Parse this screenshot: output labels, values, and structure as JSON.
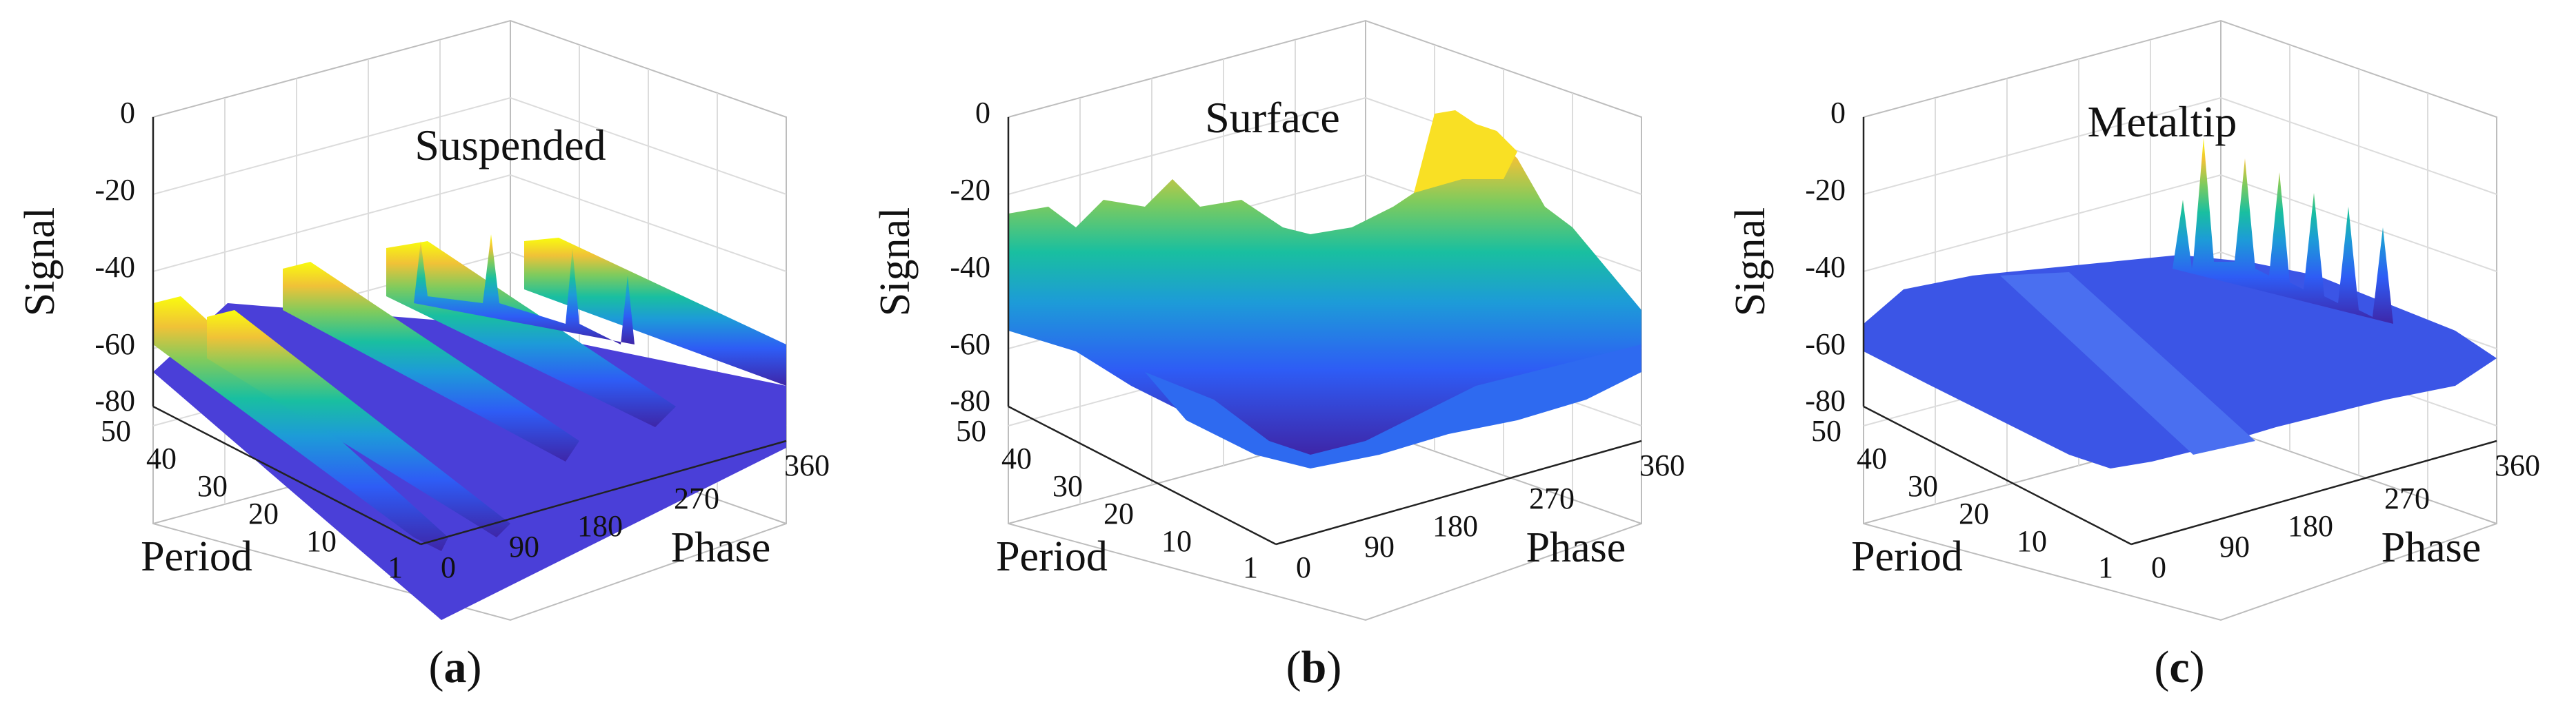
{
  "figure": {
    "panels": [
      {
        "label_open": "(",
        "label_letter": "a",
        "label_close": ")",
        "title": "Suspended"
      },
      {
        "label_open": "(",
        "label_letter": "b",
        "label_close": ")",
        "title": "Surface"
      },
      {
        "label_open": "(",
        "label_letter": "c",
        "label_close": ")",
        "title": "Metaltip"
      }
    ]
  },
  "chart_data": [
    {
      "type": "surface3d",
      "title": "Suspended",
      "xlabel": "Phase",
      "ylabel": "Period",
      "zlabel": "Signal",
      "xticks": [
        "0",
        "90",
        "180",
        "270",
        "360"
      ],
      "yticks": [
        "1",
        "10",
        "20",
        "30",
        "40",
        "50"
      ],
      "zticks": [
        "0",
        "-20",
        "-40",
        "-60",
        "-80"
      ],
      "xlim": [
        0,
        360
      ],
      "ylim": [
        1,
        50
      ],
      "zlim": [
        -80,
        0
      ],
      "colormap": [
        "#3e26a8",
        "#2e5cf5",
        "#1d9bd8",
        "#19bfa0",
        "#7fcb5d",
        "#f0c237",
        "#f9fb0e"
      ],
      "grid": true,
      "description_of_surface": "Parallel ridges along phase at about -55 to -60 dB over a -80 dB floor",
      "ridges": [
        {
          "period": 48,
          "phase_start": 0,
          "phase_end": 180,
          "level": -56
        },
        {
          "period": 42,
          "phase_start": 0,
          "phase_end": 180,
          "level": -58
        },
        {
          "period": 38,
          "phase_start": 90,
          "phase_end": 360,
          "level": -55
        },
        {
          "period": 30,
          "phase_start": 90,
          "phase_end": 360,
          "level": -57
        },
        {
          "period": 22,
          "phase_start": 0,
          "phase_end": 270,
          "level": -58
        },
        {
          "period": 12,
          "phase_start": 90,
          "phase_end": 360,
          "level": -60
        }
      ],
      "baseline": -75
    },
    {
      "type": "surface3d",
      "title": "Surface",
      "xlabel": "Phase",
      "ylabel": "Period",
      "zlabel": "Signal",
      "xticks": [
        "0",
        "90",
        "180",
        "270",
        "360"
      ],
      "yticks": [
        "1",
        "10",
        "20",
        "30",
        "40",
        "50"
      ],
      "zticks": [
        "0",
        "-20",
        "-40",
        "-60",
        "-80"
      ],
      "xlim": [
        0,
        360
      ],
      "ylim": [
        1,
        50
      ],
      "zlim": [
        -80,
        0
      ],
      "colormap": [
        "#3e26a8",
        "#2e5cf5",
        "#1d9bd8",
        "#19bfa0",
        "#7fcb5d",
        "#f0c237",
        "#f9fb0e"
      ],
      "grid": true,
      "description_of_surface": "Broad high plateau around -30 to -35 dB at low phase and a peak near -10 dB around phase 180-270",
      "plateau_level": -32,
      "peak_level": -10,
      "baseline": -55
    },
    {
      "type": "surface3d",
      "title": "Metaltip",
      "xlabel": "Phase",
      "ylabel": "Period",
      "zlabel": "Signal",
      "xticks": [
        "0",
        "90",
        "180",
        "270",
        "360"
      ],
      "yticks": [
        "1",
        "10",
        "20",
        "30",
        "40",
        "50"
      ],
      "zticks": [
        "0",
        "-20",
        "-40",
        "-60",
        "-80"
      ],
      "xlim": [
        0,
        360
      ],
      "ylim": [
        1,
        50
      ],
      "zlim": [
        -80,
        0
      ],
      "colormap": [
        "#3e26a8",
        "#2e5cf5",
        "#1d9bd8",
        "#19bfa0",
        "#7fcb5d",
        "#f0c237",
        "#f9fb0e"
      ],
      "grid": true,
      "description_of_surface": "Mostly flat blue surface near -60 dB with sharp spikes up to about -10 dB near phase 180-270",
      "baseline": -62,
      "spike_max": -10
    }
  ]
}
